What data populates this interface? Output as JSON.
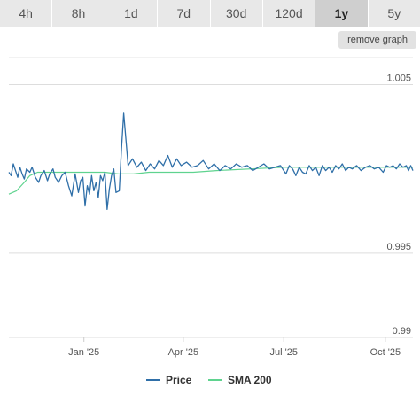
{
  "range_tabs": {
    "items": [
      "4h",
      "8h",
      "1d",
      "7d",
      "30d",
      "120d",
      "1y",
      "5y"
    ],
    "active": "1y"
  },
  "remove_graph_label": "remove graph",
  "chart_data": {
    "type": "line",
    "title": "",
    "xlabel": "",
    "ylabel": "",
    "x_ticks": [
      "Jan '25",
      "Apr '25",
      "Jul '25",
      "Oct '25"
    ],
    "x_tick_dates": [
      "2025-01-01",
      "2025-04-01",
      "2025-07-01",
      "2025-10-01"
    ],
    "y_ticks": [
      0.99,
      0.995,
      1.005
    ],
    "y_tick_labels": [
      "0.99",
      "0.995",
      "1.005"
    ],
    "ylim": [
      0.99,
      1.0065
    ],
    "xlim": [
      "2024-10-25",
      "2025-10-26"
    ],
    "grid": true,
    "legend_position": "bottom",
    "series": [
      {
        "name": "Price",
        "color": "#2f6fa8",
        "x": [
          "2024-10-25",
          "2024-10-27",
          "2024-10-29",
          "2024-10-31",
          "2024-11-02",
          "2024-11-04",
          "2024-11-06",
          "2024-11-08",
          "2024-11-10",
          "2024-11-13",
          "2024-11-15",
          "2024-11-18",
          "2024-11-21",
          "2024-11-23",
          "2024-11-26",
          "2024-11-29",
          "2024-12-01",
          "2024-12-04",
          "2024-12-06",
          "2024-12-09",
          "2024-12-12",
          "2024-12-15",
          "2024-12-18",
          "2024-12-21",
          "2024-12-24",
          "2024-12-27",
          "2024-12-29",
          "2024-12-31",
          "2025-01-02",
          "2025-01-04",
          "2025-01-06",
          "2025-01-08",
          "2025-01-10",
          "2025-01-12",
          "2025-01-14",
          "2025-01-16",
          "2025-01-18",
          "2025-01-20",
          "2025-01-22",
          "2025-01-24",
          "2025-01-26",
          "2025-01-28",
          "2025-01-30",
          "2025-02-02",
          "2025-02-04",
          "2025-02-06",
          "2025-02-10",
          "2025-02-14",
          "2025-02-18",
          "2025-02-22",
          "2025-02-26",
          "2025-03-02",
          "2025-03-06",
          "2025-03-10",
          "2025-03-14",
          "2025-03-18",
          "2025-03-22",
          "2025-03-26",
          "2025-03-30",
          "2025-04-04",
          "2025-04-09",
          "2025-04-14",
          "2025-04-19",
          "2025-04-24",
          "2025-04-29",
          "2025-05-04",
          "2025-05-09",
          "2025-05-14",
          "2025-05-19",
          "2025-05-24",
          "2025-05-29",
          "2025-06-03",
          "2025-06-08",
          "2025-06-13",
          "2025-06-18",
          "2025-06-23",
          "2025-06-28",
          "2025-07-03",
          "2025-07-06",
          "2025-07-09",
          "2025-07-12",
          "2025-07-15",
          "2025-07-18",
          "2025-07-21",
          "2025-07-24",
          "2025-07-27",
          "2025-07-30",
          "2025-08-02",
          "2025-08-05",
          "2025-08-08",
          "2025-08-11",
          "2025-08-14",
          "2025-08-17",
          "2025-08-20",
          "2025-08-23",
          "2025-08-26",
          "2025-08-29",
          "2025-09-01",
          "2025-09-05",
          "2025-09-09",
          "2025-09-13",
          "2025-09-17",
          "2025-09-21",
          "2025-09-25",
          "2025-09-29",
          "2025-10-02",
          "2025-10-05",
          "2025-10-08",
          "2025-10-11",
          "2025-10-14",
          "2025-10-17",
          "2025-10-20",
          "2025-10-22",
          "2025-10-24",
          "2025-10-26"
        ],
        "values": [
          0.9998,
          0.9996,
          1.0003,
          0.9999,
          0.9995,
          1.0001,
          0.9997,
          0.9994,
          1.0,
          0.9998,
          1.0001,
          0.9995,
          0.9992,
          0.9996,
          0.9999,
          0.9993,
          0.9997,
          1.0,
          0.9995,
          0.9992,
          0.9996,
          0.9998,
          0.999,
          0.9984,
          0.9997,
          0.9986,
          0.9993,
          0.9995,
          0.9978,
          0.999,
          0.9985,
          0.9996,
          0.9987,
          0.9992,
          0.9983,
          0.9996,
          0.9993,
          0.9998,
          0.9976,
          0.9988,
          0.9996,
          1.0,
          0.9986,
          0.9987,
          1.0012,
          1.0033,
          1.0002,
          1.0006,
          1.0001,
          1.0004,
          0.9999,
          1.0003,
          1.0,
          1.0005,
          1.0002,
          1.0008,
          1.0001,
          1.0006,
          1.0002,
          1.0004,
          1.0001,
          1.0002,
          1.0005,
          1.0,
          1.0003,
          0.9999,
          1.0002,
          1.0,
          1.0003,
          1.0001,
          1.0002,
          0.9999,
          1.0001,
          1.0003,
          1.0,
          1.0001,
          1.0002,
          0.9997,
          1.0002,
          1.0,
          0.9996,
          1.0001,
          0.9998,
          0.9997,
          1.0002,
          0.9999,
          1.0001,
          0.9996,
          1.0002,
          0.9999,
          1.0001,
          0.9998,
          1.0002,
          1.0,
          1.0003,
          0.9999,
          1.0001,
          1.0,
          1.0002,
          0.9999,
          1.0001,
          1.0002,
          1.0,
          1.0001,
          0.9998,
          1.0002,
          1.0001,
          1.0002,
          1.0,
          1.0003,
          1.0001,
          1.0002,
          0.9999,
          1.0002,
          0.9999
        ]
      },
      {
        "name": "SMA 200",
        "color": "#5fd38f",
        "x": [
          "2024-10-25",
          "2024-11-01",
          "2024-11-08",
          "2024-11-13",
          "2024-11-20",
          "2024-12-05",
          "2024-12-20",
          "2025-01-05",
          "2025-01-20",
          "2025-02-01",
          "2025-02-15",
          "2025-03-01",
          "2025-03-20",
          "2025-04-10",
          "2025-05-01",
          "2025-06-01",
          "2025-07-01",
          "2025-08-01",
          "2025-09-01",
          "2025-10-01",
          "2025-10-26"
        ],
        "values": [
          0.9985,
          0.9987,
          0.9992,
          0.9996,
          0.9998,
          0.9998,
          0.9998,
          0.9998,
          0.9998,
          0.9997,
          0.9997,
          0.9998,
          0.9998,
          0.9998,
          0.9999,
          1.0,
          1.0001,
          1.0001,
          1.0001,
          1.0001,
          1.0001
        ]
      }
    ]
  }
}
